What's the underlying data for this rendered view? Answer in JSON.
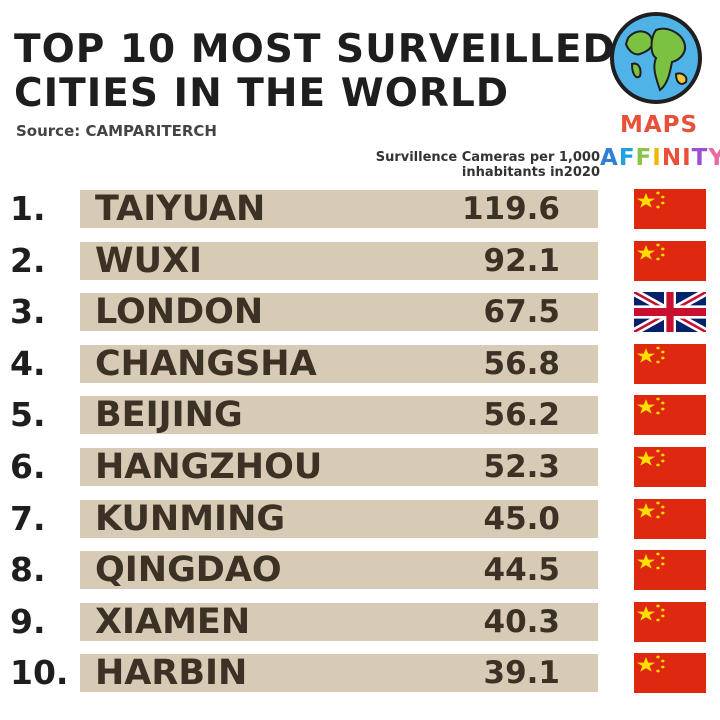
{
  "title_lines": [
    "TOP 10 MOST SURVEILLED",
    "CITIES IN THE WORLD"
  ],
  "source": "Source: CAMPARITERCH",
  "column_header_lines": [
    "Survillence Cameras per 1,000",
    "inhabitants in2020"
  ],
  "logo": {
    "maps": "MAPS",
    "affinity_letters": [
      "A",
      "F",
      "F",
      "I",
      "N",
      "I",
      "T",
      "Y"
    ],
    "affinity_colors": [
      "#2f7fd8",
      "#1fa3e0",
      "#8bc34a",
      "#f2b705",
      "#e8503a",
      "#e8503a",
      "#9c4fd6",
      "#e96aa0"
    ]
  },
  "colors": {
    "bar": "#d8cbb6",
    "china_red": "#de2910",
    "china_star": "#ffde00",
    "uk_blue": "#012169",
    "uk_red": "#c8102e"
  },
  "chart_data": {
    "type": "table",
    "title": "TOP 10 MOST SURVEILLED CITIES IN THE WORLD",
    "value_label": "Survillence Cameras per 1,000 inhabitants in2020",
    "rows": [
      {
        "rank": "1.",
        "city": "TAIYUAN",
        "value": 119.6,
        "value_text": "119.6",
        "flag": "china-flag"
      },
      {
        "rank": "2.",
        "city": "WUXI",
        "value": 92.1,
        "value_text": "92.1",
        "flag": "china-flag"
      },
      {
        "rank": "3.",
        "city": "LONDON",
        "value": 67.5,
        "value_text": "67.5",
        "flag": "uk-flag"
      },
      {
        "rank": "4.",
        "city": "CHANGSHA",
        "value": 56.8,
        "value_text": "56.8",
        "flag": "china-flag"
      },
      {
        "rank": "5.",
        "city": "BEIJING",
        "value": 56.2,
        "value_text": "56.2",
        "flag": "china-flag"
      },
      {
        "rank": "6.",
        "city": "HANGZHOU",
        "value": 52.3,
        "value_text": "52.3",
        "flag": "china-flag"
      },
      {
        "rank": "7.",
        "city": "KUNMING",
        "value": 45.0,
        "value_text": "45.0",
        "flag": "china-flag"
      },
      {
        "rank": "8.",
        "city": "QINGDAO",
        "value": 44.5,
        "value_text": "44.5",
        "flag": "china-flag"
      },
      {
        "rank": "9.",
        "city": "XIAMEN",
        "value": 40.3,
        "value_text": "40.3",
        "flag": "china-flag"
      },
      {
        "rank": "10.",
        "city": "HARBIN",
        "value": 39.1,
        "value_text": "39.1",
        "flag": "china-flag"
      }
    ]
  }
}
